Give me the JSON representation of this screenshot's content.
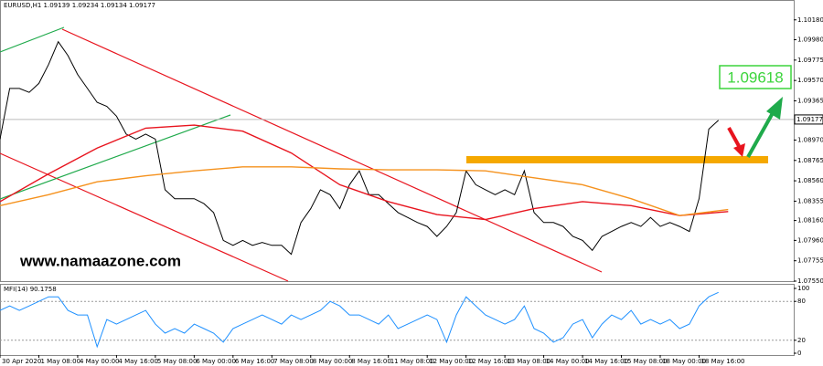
{
  "chart_data": [
    {
      "type": "line",
      "title": "EURUSD,H1  1.09139 1.09234 1.09134 1.09177",
      "ylim": [
        1.0755,
        1.1038
      ],
      "xlim": [
        0,
        327
      ],
      "yticks": [
        {
          "value": 1.1018,
          "label": "1.10180"
        },
        {
          "value": 1.0998,
          "label": "1.09980"
        },
        {
          "value": 1.09775,
          "label": "1.09775"
        },
        {
          "value": 1.0957,
          "label": "1.09570"
        },
        {
          "value": 1.09365,
          "label": "1.09365"
        },
        {
          "value": 1.0897,
          "label": "1.08970"
        },
        {
          "value": 1.08765,
          "label": "1.08765"
        },
        {
          "value": 1.0856,
          "label": "1.08560"
        },
        {
          "value": 1.08355,
          "label": "1.08355"
        },
        {
          "value": 1.0816,
          "label": "1.08160"
        },
        {
          "value": 1.0796,
          "label": "1.07960"
        },
        {
          "value": 1.07755,
          "label": "1.07755"
        },
        {
          "value": 1.0755,
          "label": "1.07550"
        }
      ],
      "last_price": {
        "value": 1.09177,
        "label": "1.09177"
      },
      "annotations": [
        {
          "value": 1.09618,
          "label": "1.09618"
        },
        "www.namaazone.com"
      ],
      "series": [
        {
          "name": "EURUSD",
          "color": "#000000",
          "x": [
            0,
            4,
            8,
            12,
            16,
            20,
            24,
            28,
            32,
            36,
            40,
            44,
            48,
            52,
            56,
            60,
            64,
            68,
            72,
            76,
            80,
            84,
            88,
            92,
            96,
            100,
            104,
            108,
            112,
            116,
            120,
            124,
            128,
            132,
            136,
            140,
            144,
            148,
            152,
            156,
            160,
            164,
            168,
            172,
            176,
            180,
            184,
            188,
            192,
            196,
            200,
            204,
            208,
            212,
            216,
            220,
            224,
            228,
            232,
            236,
            240,
            244,
            248,
            252,
            256,
            260,
            264,
            268,
            272,
            276,
            280,
            284,
            288,
            292,
            296
          ],
          "values": [
            1.0898,
            1.0949,
            1.0949,
            1.0945,
            1.0954,
            1.0973,
            1.0996,
            1.0982,
            1.0963,
            1.0949,
            1.0935,
            1.0931,
            1.0921,
            1.0903,
            1.0898,
            1.0903,
            1.0898,
            1.0847,
            1.0838,
            1.0838,
            1.0838,
            1.0833,
            1.0824,
            1.0796,
            1.0791,
            1.0796,
            1.0791,
            1.0794,
            1.0791,
            1.0791,
            1.0782,
            1.0814,
            1.0828,
            1.0847,
            1.0842,
            1.0828,
            1.0852,
            1.0866,
            1.0842,
            1.0842,
            1.0833,
            1.0824,
            1.0819,
            1.0814,
            1.081,
            1.08,
            1.081,
            1.0824,
            1.0866,
            1.0852,
            1.0847,
            1.0842,
            1.0847,
            1.0842,
            1.0866,
            1.0824,
            1.0814,
            1.0814,
            1.081,
            1.08,
            1.0796,
            1.0786,
            1.08,
            1.0805,
            1.081,
            1.0814,
            1.081,
            1.0819,
            1.081,
            1.0814,
            1.081,
            1.0805,
            1.0838,
            1.0908,
            1.0917
          ]
        },
        {
          "name": "MA-red",
          "color": "#e8141e",
          "x": [
            0,
            20,
            40,
            60,
            80,
            100,
            120,
            140,
            160,
            180,
            200,
            220,
            240,
            260,
            280,
            300
          ],
          "values": [
            1.0835,
            1.0863,
            1.0889,
            1.0909,
            1.0912,
            1.0906,
            1.0884,
            1.0852,
            1.0835,
            1.0822,
            1.0817,
            1.0828,
            1.0835,
            1.0831,
            1.0821,
            1.0825
          ]
        },
        {
          "name": "MA-orange",
          "color": "#f5921e",
          "x": [
            0,
            20,
            40,
            60,
            80,
            100,
            120,
            140,
            160,
            180,
            200,
            220,
            240,
            260,
            280,
            300
          ],
          "values": [
            1.0831,
            1.0842,
            1.0855,
            1.0861,
            1.0866,
            1.087,
            1.087,
            1.0868,
            1.0867,
            1.0867,
            1.0866,
            1.0859,
            1.0852,
            1.0838,
            1.0821,
            1.0827
          ]
        }
      ]
    },
    {
      "type": "line",
      "title": "MFI(14) 90.1758",
      "ylim": [
        0,
        100
      ],
      "xlim": [
        0,
        327
      ],
      "yticks": [
        100,
        80,
        20,
        0
      ],
      "xticks": [
        {
          "value": 0,
          "label": "30 Apr 2020"
        },
        {
          "value": 16,
          "label": "1 May 08:00"
        },
        {
          "value": 32,
          "label": "4 May 00:00"
        },
        {
          "value": 48,
          "label": "4 May 16:00"
        },
        {
          "value": 64,
          "label": "5 May 08:00"
        },
        {
          "value": 80,
          "label": "6 May 00:00"
        },
        {
          "value": 96,
          "label": "6 May 16:00"
        },
        {
          "value": 112,
          "label": "7 May 08:00"
        },
        {
          "value": 128,
          "label": "8 May 00:00"
        },
        {
          "value": 144,
          "label": "8 May 16:00"
        },
        {
          "value": 160,
          "label": "11 May 08:00"
        },
        {
          "value": 176,
          "label": "12 May 00:00"
        },
        {
          "value": 192,
          "label": "12 May 16:00"
        },
        {
          "value": 208,
          "label": "13 May 08:00"
        },
        {
          "value": 224,
          "label": "14 May 00:00"
        },
        {
          "value": 240,
          "label": "14 May 16:00"
        },
        {
          "value": 256,
          "label": "15 May 08:00"
        },
        {
          "value": 272,
          "label": "18 May 00:00"
        },
        {
          "value": 288,
          "label": "18 May 16:00"
        }
      ],
      "series": [
        {
          "name": "MFI",
          "color": "#1e90ff",
          "x": [
            0,
            4,
            8,
            12,
            16,
            20,
            24,
            28,
            32,
            36,
            40,
            44,
            48,
            52,
            56,
            60,
            64,
            68,
            72,
            76,
            80,
            84,
            88,
            92,
            96,
            100,
            104,
            108,
            112,
            116,
            120,
            124,
            128,
            132,
            136,
            140,
            144,
            148,
            152,
            156,
            160,
            164,
            168,
            172,
            176,
            180,
            184,
            188,
            192,
            196,
            200,
            204,
            208,
            212,
            216,
            220,
            224,
            228,
            232,
            236,
            240,
            244,
            248,
            252,
            256,
            260,
            264,
            268,
            272,
            276,
            280,
            284,
            288,
            292,
            296
          ],
          "values": [
            66,
            73,
            66,
            73,
            80,
            87,
            87,
            66,
            59,
            59,
            10,
            52,
            45,
            52,
            59,
            66,
            45,
            31,
            38,
            31,
            45,
            38,
            31,
            17,
            38,
            45,
            52,
            59,
            52,
            45,
            59,
            52,
            59,
            66,
            80,
            73,
            59,
            59,
            52,
            45,
            59,
            38,
            45,
            52,
            59,
            52,
            17,
            59,
            87,
            73,
            59,
            52,
            45,
            52,
            73,
            38,
            31,
            17,
            24,
            45,
            52,
            24,
            45,
            59,
            52,
            66,
            45,
            52,
            45,
            52,
            38,
            45,
            73,
            87,
            94
          ]
        }
      ]
    }
  ]
}
